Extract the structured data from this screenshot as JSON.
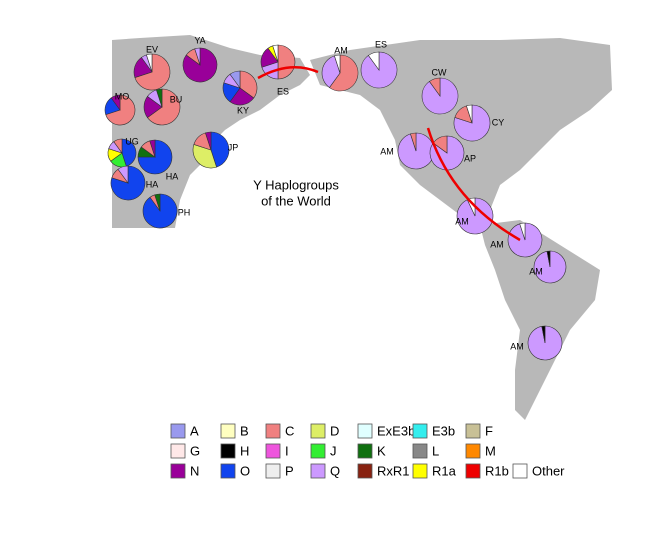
{
  "title_lines": [
    "Y Haplogroups",
    "of the World"
  ],
  "legend": [
    {
      "label": "A",
      "color": "#9999ee"
    },
    {
      "label": "B",
      "color": "#ffffc0"
    },
    {
      "label": "C",
      "color": "#f08080"
    },
    {
      "label": "D",
      "color": "#ddee66"
    },
    {
      "label": "ExE3b",
      "color": "#e0ffff"
    },
    {
      "label": "E3b",
      "color": "#33eeee"
    },
    {
      "label": "F",
      "color": "#c8c096"
    },
    {
      "label": "G",
      "color": "#ffe8e8"
    },
    {
      "label": "H",
      "color": "#000000"
    },
    {
      "label": "I",
      "color": "#ee55dd"
    },
    {
      "label": "J",
      "color": "#33ee33"
    },
    {
      "label": "K",
      "color": "#107010"
    },
    {
      "label": "L",
      "color": "#888888"
    },
    {
      "label": "M",
      "color": "#ff8800"
    },
    {
      "label": "N",
      "color": "#990099"
    },
    {
      "label": "O",
      "color": "#1144ee"
    },
    {
      "label": "P",
      "color": "#eeeeee"
    },
    {
      "label": "Q",
      "color": "#cc99ff"
    },
    {
      "label": "RxR1",
      "color": "#882211"
    },
    {
      "label": "R1a",
      "color": "#ffff00"
    },
    {
      "label": "R1b",
      "color": "#ee0000"
    },
    {
      "label": "Other",
      "color": "#ffffff"
    }
  ],
  "pies": [
    {
      "label": "EV",
      "segments": [
        {
          "group": "C",
          "value": 70
        },
        {
          "group": "N",
          "value": 20
        },
        {
          "group": "Q",
          "value": 5
        },
        {
          "group": "Other",
          "value": 5
        }
      ]
    },
    {
      "label": "YA",
      "segments": [
        {
          "group": "N",
          "value": 85
        },
        {
          "group": "C",
          "value": 10
        },
        {
          "group": "Q",
          "value": 5
        }
      ]
    },
    {
      "label": "KY",
      "segments": [
        {
          "group": "C",
          "value": 35
        },
        {
          "group": "N",
          "value": 25
        },
        {
          "group": "O",
          "value": 20
        },
        {
          "group": "Q",
          "value": 10
        },
        {
          "group": "A",
          "value": 10
        }
      ]
    },
    {
      "label": "ES",
      "segments": [
        {
          "group": "C",
          "value": 50
        },
        {
          "group": "Q",
          "value": 20
        },
        {
          "group": "N",
          "value": 20
        },
        {
          "group": "R1a",
          "value": 5
        },
        {
          "group": "Other",
          "value": 5
        }
      ]
    },
    {
      "label": "AM",
      "segments": [
        {
          "group": "C",
          "value": 60
        },
        {
          "group": "Q",
          "value": 35
        },
        {
          "group": "Other",
          "value": 5
        }
      ]
    },
    {
      "label": "ES",
      "segments": [
        {
          "group": "Q",
          "value": 90
        },
        {
          "group": "Other",
          "value": 10
        }
      ]
    },
    {
      "label": "CW",
      "segments": [
        {
          "group": "Q",
          "value": 90
        },
        {
          "group": "C",
          "value": 10
        }
      ]
    },
    {
      "label": "CY",
      "segments": [
        {
          "group": "Q",
          "value": 80
        },
        {
          "group": "C",
          "value": 15
        },
        {
          "group": "Other",
          "value": 5
        }
      ]
    },
    {
      "label": "AM",
      "segments": [
        {
          "group": "Q",
          "value": 95
        },
        {
          "group": "C",
          "value": 5
        }
      ]
    },
    {
      "label": "AP",
      "segments": [
        {
          "group": "Q",
          "value": 85
        },
        {
          "group": "C",
          "value": 15
        }
      ]
    },
    {
      "label": "AM",
      "segments": [
        {
          "group": "Q",
          "value": 93
        },
        {
          "group": "Other",
          "value": 7
        }
      ]
    },
    {
      "label": "AM",
      "segments": [
        {
          "group": "Q",
          "value": 95
        },
        {
          "group": "Other",
          "value": 5
        }
      ]
    },
    {
      "label": "AM",
      "segments": [
        {
          "group": "Q",
          "value": 97
        },
        {
          "group": "H",
          "value": 3
        }
      ]
    },
    {
      "label": "AM",
      "segments": [
        {
          "group": "Q",
          "value": 97
        },
        {
          "group": "H",
          "value": 3
        }
      ]
    },
    {
      "label": "BU",
      "segments": [
        {
          "group": "C",
          "value": 65
        },
        {
          "group": "N",
          "value": 20
        },
        {
          "group": "Q",
          "value": 10
        },
        {
          "group": "K",
          "value": 5
        }
      ]
    },
    {
      "label": "MO",
      "segments": [
        {
          "group": "C",
          "value": 70
        },
        {
          "group": "O",
          "value": 20
        },
        {
          "group": "N",
          "value": 10
        }
      ]
    },
    {
      "label": "UG",
      "segments": [
        {
          "group": "O",
          "value": 45
        },
        {
          "group": "J",
          "value": 20
        },
        {
          "group": "R1a",
          "value": 15
        },
        {
          "group": "Q",
          "value": 10
        },
        {
          "group": "C",
          "value": 10
        }
      ]
    },
    {
      "label": "HA",
      "segments": [
        {
          "group": "O",
          "value": 75
        },
        {
          "group": "K",
          "value": 10
        },
        {
          "group": "C",
          "value": 10
        },
        {
          "group": "N",
          "value": 5
        }
      ]
    },
    {
      "label": "HA",
      "segments": [
        {
          "group": "O",
          "value": 80
        },
        {
          "group": "C",
          "value": 10
        },
        {
          "group": "Q",
          "value": 10
        }
      ]
    },
    {
      "label": "JP",
      "segments": [
        {
          "group": "O",
          "value": 45
        },
        {
          "group": "D",
          "value": 35
        },
        {
          "group": "C",
          "value": 15
        },
        {
          "group": "N",
          "value": 5
        }
      ]
    },
    {
      "label": "PH",
      "segments": [
        {
          "group": "O",
          "value": 90
        },
        {
          "group": "C",
          "value": 5
        },
        {
          "group": "K",
          "value": 5
        }
      ]
    }
  ]
}
